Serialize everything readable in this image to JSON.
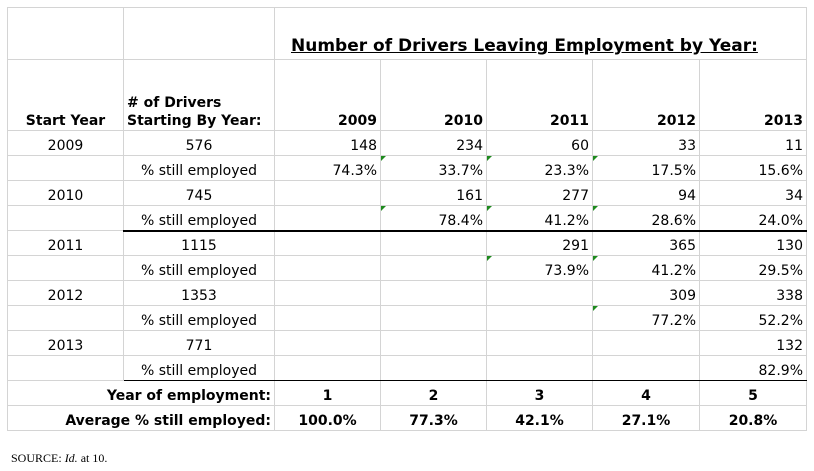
{
  "title": "Number of Drivers Leaving Employment by Year:",
  "headers": {
    "start_year": "Start Year",
    "drivers_line1": "# of Drivers",
    "drivers_line2": "Starting By Year:",
    "years": [
      "2009",
      "2010",
      "2011",
      "2012",
      "2013"
    ]
  },
  "pct_label": "% still employed",
  "rows": [
    {
      "start_year": "2009",
      "drivers": "576",
      "leaving": [
        "148",
        "234",
        "60",
        "33",
        "11"
      ],
      "pct": [
        "74.3%",
        "33.7%",
        "23.3%",
        "17.5%",
        "15.6%"
      ]
    },
    {
      "start_year": "2010",
      "drivers": "745",
      "leaving": [
        "",
        "161",
        "277",
        "94",
        "34"
      ],
      "pct": [
        "",
        "78.4%",
        "41.2%",
        "28.6%",
        "24.0%"
      ]
    },
    {
      "start_year": "2011",
      "drivers": "1115",
      "leaving": [
        "",
        "",
        "291",
        "365",
        "130"
      ],
      "pct": [
        "",
        "",
        "73.9%",
        "41.2%",
        "29.5%"
      ]
    },
    {
      "start_year": "2012",
      "drivers": "1353",
      "leaving": [
        "",
        "",
        "",
        "309",
        "338"
      ],
      "pct": [
        "",
        "",
        "",
        "77.2%",
        "52.2%"
      ]
    },
    {
      "start_year": "2013",
      "drivers": "771",
      "leaving": [
        "",
        "",
        "",
        "",
        "132"
      ],
      "pct": [
        "",
        "",
        "",
        "",
        "82.9%"
      ]
    }
  ],
  "summary": {
    "year_label": "Year of employment:",
    "years": [
      "1",
      "2",
      "3",
      "4",
      "5"
    ],
    "avg_label": "Average % still employed:",
    "averages": [
      "100.0%",
      "77.3%",
      "42.1%",
      "27.1%",
      "20.8%"
    ]
  },
  "source": {
    "prefix": "SOURCE: ",
    "italic": "Id.",
    "suffix": " at 10."
  },
  "colors": {
    "error_flag": "#1e8a1e",
    "gridline": "#d4d4d4"
  }
}
